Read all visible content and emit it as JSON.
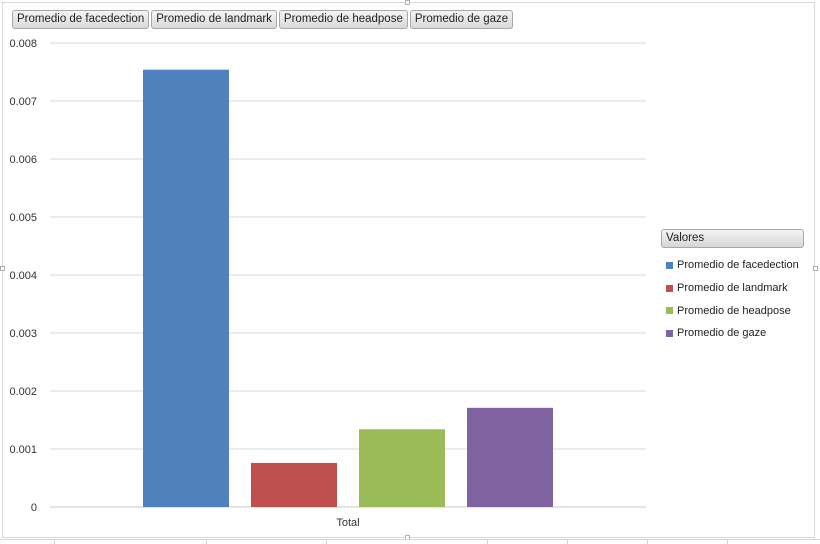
{
  "field_buttons": [
    "Promedio de facedection",
    "Promedio de landmark",
    "Promedio de headpose",
    "Promedio de gaze"
  ],
  "legend": {
    "title": "Valores",
    "entries": [
      {
        "label": "Promedio de facedection",
        "color": "#4f81bd"
      },
      {
        "label": "Promedio de landmark",
        "color": "#c0504d"
      },
      {
        "label": "Promedio de headpose",
        "color": "#9bbb59"
      },
      {
        "label": "Promedio de gaze",
        "color": "#8064a2"
      }
    ]
  },
  "chart_data": {
    "type": "bar",
    "categories": [
      "Total"
    ],
    "series": [
      {
        "name": "Promedio de facedection",
        "values": [
          0.00754
        ],
        "color": "#4f81bd"
      },
      {
        "name": "Promedio de landmark",
        "values": [
          0.00076
        ],
        "color": "#c0504d"
      },
      {
        "name": "Promedio de headpose",
        "values": [
          0.00134
        ],
        "color": "#9bbb59"
      },
      {
        "name": "Promedio de gaze",
        "values": [
          0.00171
        ],
        "color": "#8064a2"
      }
    ],
    "yticks": [
      "0",
      "0.001",
      "0.002",
      "0.003",
      "0.004",
      "0.005",
      "0.006",
      "0.007",
      "0.008"
    ],
    "ylim": [
      0,
      0.008
    ],
    "grid": true,
    "legend_position": "right"
  }
}
